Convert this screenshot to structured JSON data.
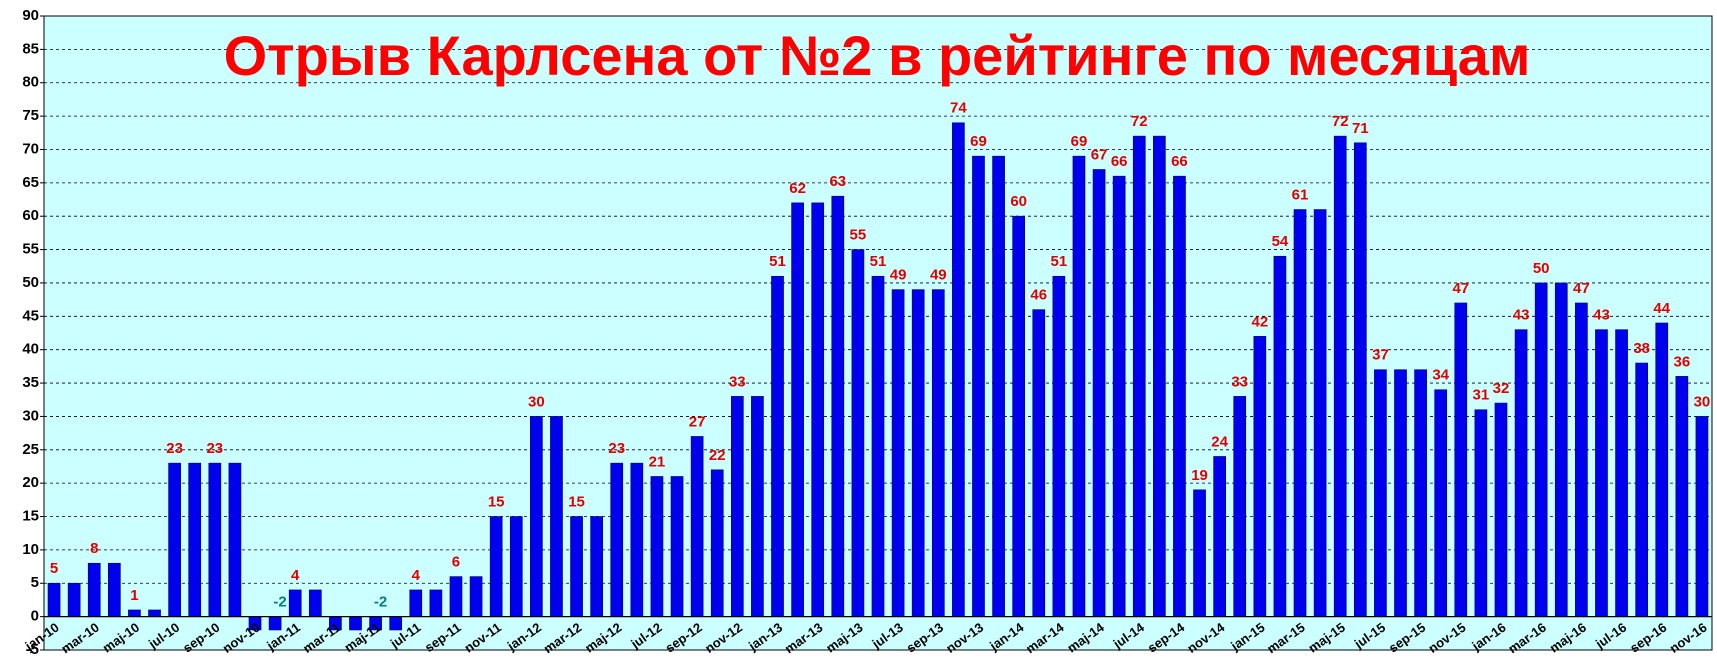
{
  "chart_data": {
    "type": "bar",
    "title": "Отрыв Карлсена от №2 в рейтинге по месяцам",
    "categories": [
      "jan-10",
      null,
      "mar-10",
      null,
      "maj-10",
      null,
      "jul-10",
      null,
      "sep-10",
      null,
      "nov-10",
      null,
      "jan-11",
      null,
      "mar-11",
      null,
      "maj-11",
      null,
      "jul-11",
      null,
      "sep-11",
      null,
      "nov-11",
      null,
      "jan-12",
      null,
      "mar-12",
      null,
      "maj-12",
      null,
      "jul-12",
      null,
      "sep-12",
      null,
      "nov-12",
      null,
      "jan-13",
      null,
      "mar-13",
      null,
      "maj-13",
      null,
      "jul-13",
      null,
      "sep-13",
      null,
      "nov-13",
      null,
      "jan-14",
      null,
      "mar-14",
      null,
      "maj-14",
      null,
      "jul-14",
      null,
      "sep-14",
      null,
      "nov-14",
      null,
      "jan-15",
      null,
      "mar-15",
      null,
      "maj-15",
      null,
      "jul-15",
      null,
      "sep-15",
      null,
      "nov-15",
      null,
      "jan-16",
      null,
      "mar-16",
      null,
      "maj-16",
      null,
      "jul-16",
      null,
      "sep-16",
      null,
      "nov-16"
    ],
    "values": [
      5,
      5,
      8,
      8,
      1,
      1,
      23,
      23,
      23,
      23,
      -2,
      -2,
      4,
      4,
      -2,
      -2,
      -2,
      -2,
      4,
      4,
      6,
      6,
      15,
      15,
      30,
      30,
      15,
      15,
      23,
      23,
      21,
      21,
      27,
      22,
      33,
      33,
      51,
      62,
      62,
      63,
      55,
      51,
      49,
      49,
      49,
      74,
      69,
      69,
      60,
      46,
      51,
      69,
      67,
      66,
      72,
      72,
      66,
      19,
      24,
      33,
      42,
      54,
      61,
      61,
      72,
      71,
      37,
      37,
      37,
      34,
      47,
      31,
      32,
      43,
      50,
      50,
      47,
      43,
      43,
      38,
      44,
      36,
      30
    ],
    "value_labels": [
      "5",
      null,
      "8",
      null,
      "1",
      null,
      "23",
      null,
      "23",
      null,
      null,
      "-2",
      "4",
      null,
      null,
      null,
      "-2",
      null,
      "4",
      null,
      "6",
      null,
      "15",
      null,
      "30",
      null,
      "15",
      null,
      "23",
      null,
      "21",
      null,
      "27",
      "22",
      "33",
      null,
      "51",
      "62",
      null,
      "63",
      "55",
      "51",
      "49",
      null,
      "49",
      "74",
      "69",
      null,
      "60",
      "46",
      "51",
      "69",
      "67",
      "66",
      "72",
      null,
      "66",
      "19",
      "24",
      "33",
      "42",
      "54",
      "61",
      null,
      "72",
      "71",
      "37",
      null,
      null,
      "34",
      "47",
      "31",
      "32",
      "43",
      "50",
      null,
      "47",
      "43",
      null,
      "38",
      "44",
      "36",
      "30"
    ],
    "color": "#0000ee",
    "label_color": "#e00000",
    "negative_label_color": "#008080",
    "background": "#ccffff",
    "ylim": [
      -5,
      90
    ],
    "yticks": [
      -5,
      0,
      5,
      10,
      15,
      20,
      25,
      30,
      35,
      40,
      45,
      50,
      55,
      60,
      65,
      70,
      75,
      80,
      85,
      90
    ],
    "grid": true
  }
}
